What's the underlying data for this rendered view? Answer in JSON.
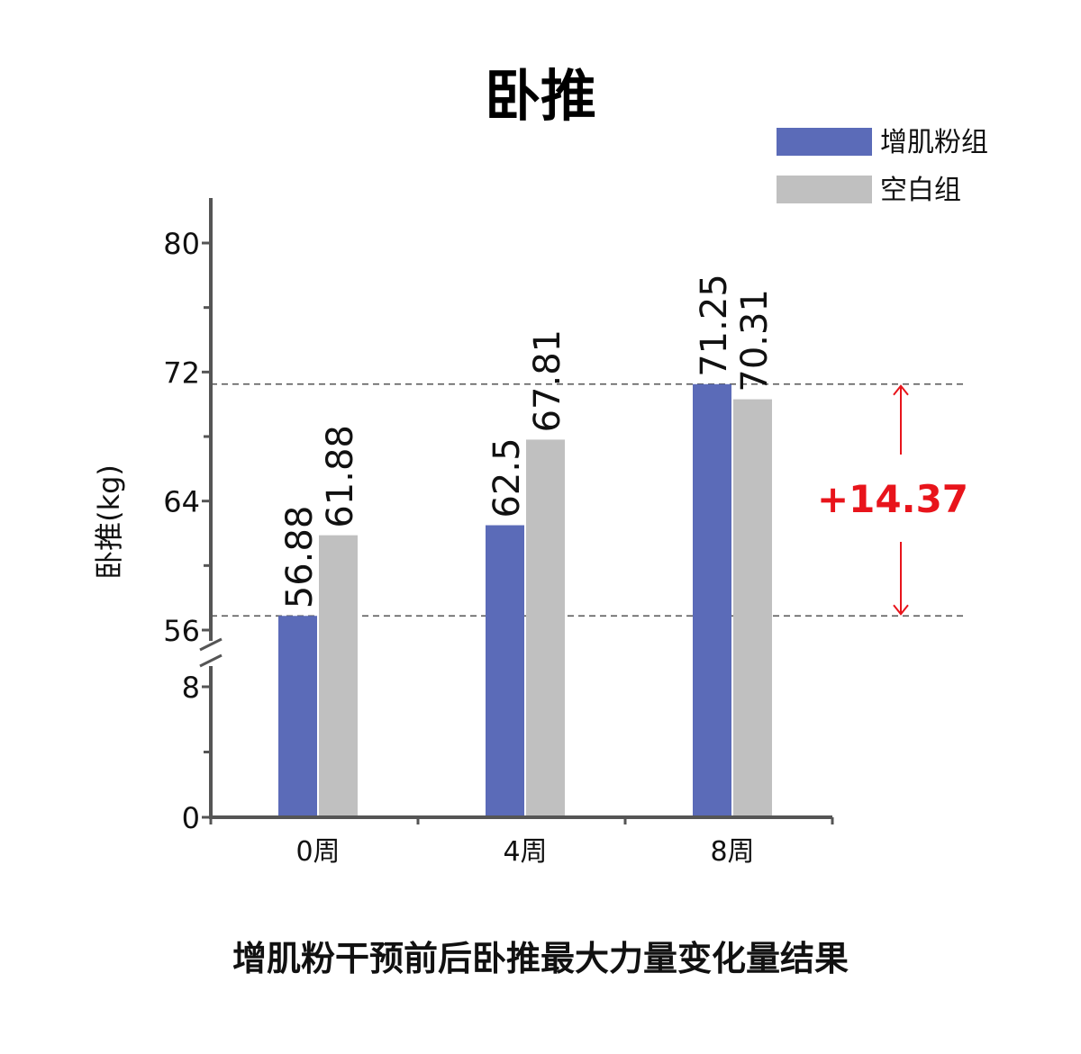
{
  "chart_data": {
    "type": "bar",
    "title": "卧推",
    "ylabel": "卧推(kg)",
    "xlabel": "",
    "caption": "增肌粉干预前后卧推最大力量变化量结果",
    "categories": [
      "0周",
      "4周",
      "8周"
    ],
    "series": [
      {
        "name": "增肌粉组",
        "color": "#5b6bb8",
        "values": [
          56.88,
          62.5,
          71.25
        ],
        "labels": [
          "56.88",
          "62.5",
          "71.25"
        ]
      },
      {
        "name": "空白组",
        "color": "#c0c0c0",
        "values": [
          61.88,
          67.81,
          70.31
        ],
        "labels": [
          "61.88",
          "67.81",
          "70.31"
        ]
      }
    ],
    "y_axis": {
      "broken": true,
      "lower_range": [
        0,
        8
      ],
      "upper_range": [
        56,
        80
      ],
      "tick_labels": [
        "0",
        "8",
        "56",
        "64",
        "72",
        "80"
      ],
      "ticks": [
        0,
        8,
        56,
        64,
        72,
        80
      ],
      "minor_ticks": [
        4,
        60,
        68,
        76
      ]
    },
    "reference_lines": [
      56.88,
      71.25
    ],
    "annotation": {
      "text": "+14.37",
      "color": "#e8141b"
    },
    "legend_position": "top-right",
    "grid": false
  }
}
